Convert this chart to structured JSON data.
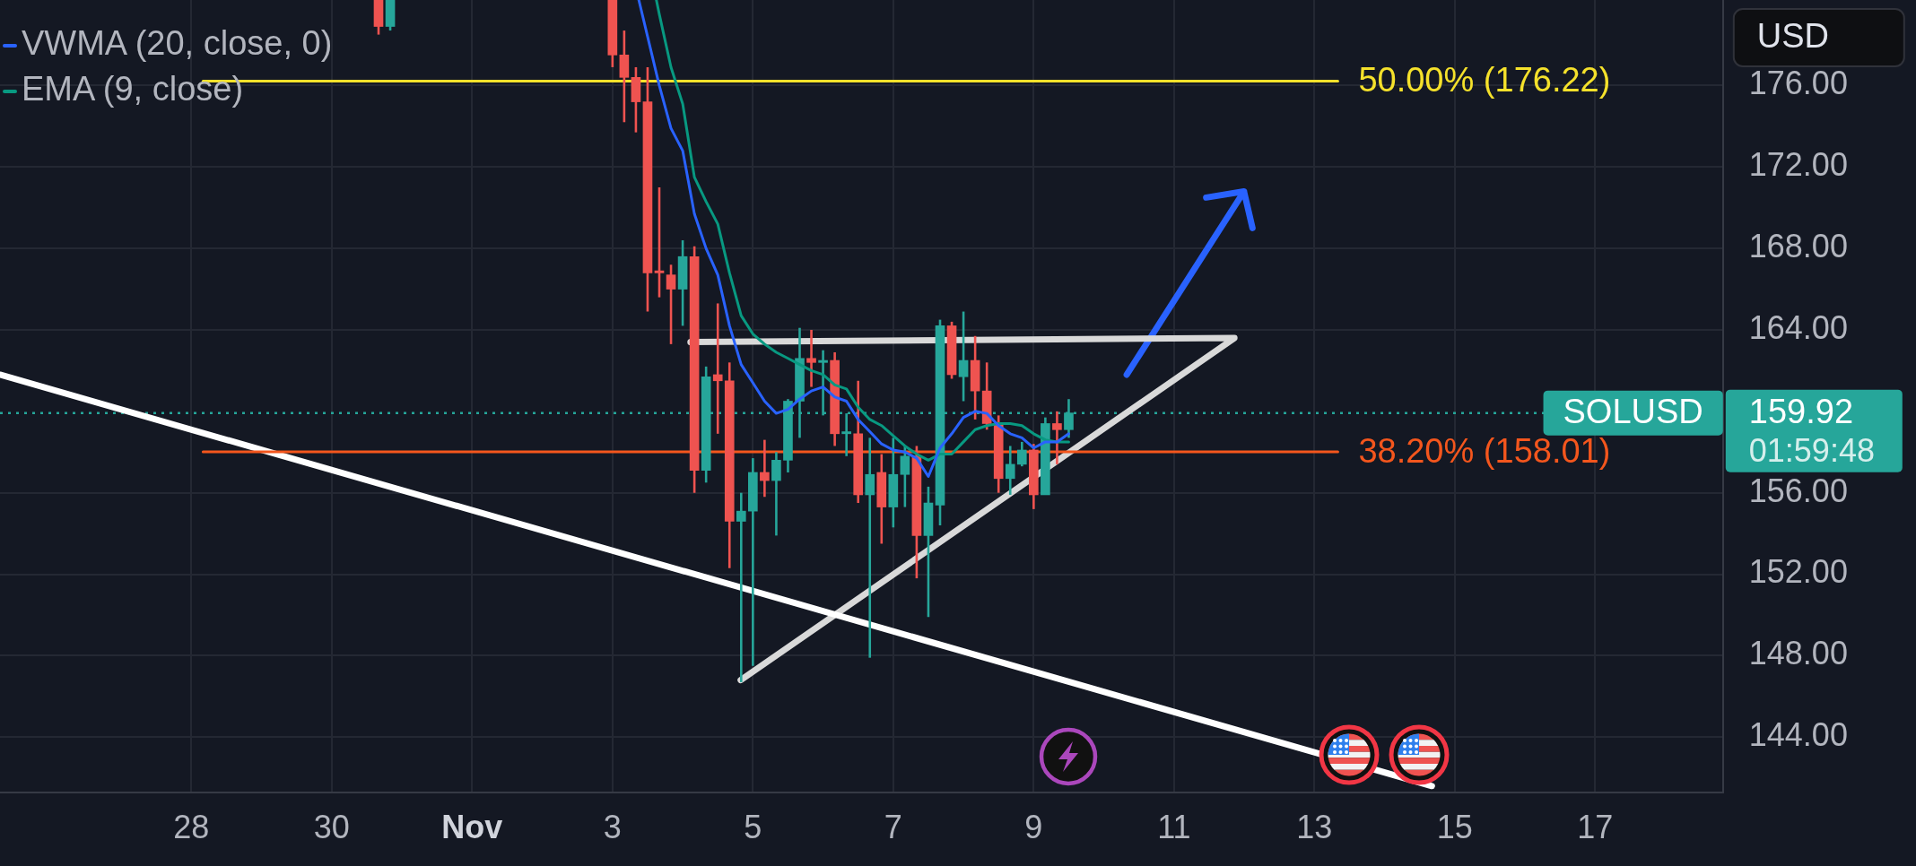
{
  "chart_data": {
    "type": "candlestick",
    "legend": "top left",
    "grid": true,
    "x": [
      "--10-30T16:00",
      "--10-30T20:00",
      "--11-03T00:00",
      "--11-03T04:00",
      "--11-03T08:00",
      "--11-03T12:00",
      "--11-03T16:00",
      "--11-03T20:00",
      "--11-04T00:00",
      "--11-04T04:00",
      "--11-04T08:00",
      "--11-04T12:00",
      "--11-04T16:00",
      "--11-04T20:00",
      "--11-05T00:00",
      "--11-05T04:00",
      "--11-05T08:00",
      "--11-05T12:00",
      "--11-05T16:00",
      "--11-05T20:00",
      "--11-06T00:00",
      "--11-06T04:00",
      "--11-06T08:00",
      "--11-06T12:00",
      "--11-06T16:00",
      "--11-06T20:00",
      "--11-07T00:00",
      "--11-07T04:00",
      "--11-07T08:00",
      "--11-07T12:00",
      "--11-07T16:00",
      "--11-07T20:00",
      "--11-08T00:00",
      "--11-08T04:00",
      "--11-08T08:00",
      "--11-08T12:00",
      "--11-08T16:00",
      "--11-08T20:00",
      "--11-09T00:00",
      "--11-09T04:00",
      "--11-09T08:00",
      "--11-09T12:00"
    ],
    "ohlc": [
      [
        180.2,
        180.2,
        178.5,
        178.9
      ],
      [
        178.9,
        180.2,
        178.7,
        180.2
      ],
      [
        180.2,
        180.2,
        176.9,
        177.5
      ],
      [
        177.5,
        178.7,
        174.2,
        176.4
      ],
      [
        176.4,
        176.9,
        173.7,
        175.2
      ],
      [
        175.2,
        176.9,
        164.9,
        166.8
      ],
      [
        166.9,
        171.0,
        165.6,
        166.8
      ],
      [
        166.7,
        167.2,
        163.3,
        166.0
      ],
      [
        166.0,
        168.4,
        164.2,
        167.6
      ],
      [
        167.6,
        168.1,
        156.0,
        157.1
      ],
      [
        157.1,
        162.2,
        156.5,
        161.7
      ],
      [
        161.8,
        165.3,
        158.9,
        161.5
      ],
      [
        161.5,
        162.4,
        152.3,
        154.6
      ],
      [
        154.6,
        156.0,
        146.7,
        155.1
      ],
      [
        155.1,
        157.7,
        147.5,
        157.0
      ],
      [
        157.0,
        158.6,
        155.8,
        156.6
      ],
      [
        156.6,
        158.0,
        153.9,
        157.6
      ],
      [
        157.6,
        160.6,
        157.0,
        160.5
      ],
      [
        160.5,
        164.1,
        158.7,
        162.6
      ],
      [
        162.6,
        164.0,
        161.2,
        162.4
      ],
      [
        162.4,
        163.0,
        159.8,
        162.5
      ],
      [
        162.5,
        162.9,
        158.3,
        158.9
      ],
      [
        158.9,
        159.9,
        157.8,
        159.0
      ],
      [
        158.9,
        161.5,
        155.5,
        155.9
      ],
      [
        155.9,
        158.7,
        147.9,
        156.9
      ],
      [
        157.0,
        157.9,
        153.5,
        155.3
      ],
      [
        155.3,
        158.7,
        154.3,
        156.9
      ],
      [
        156.9,
        158.3,
        155.3,
        157.8
      ],
      [
        157.8,
        158.3,
        151.8,
        153.9
      ],
      [
        153.9,
        156.3,
        149.9,
        155.5
      ],
      [
        155.4,
        164.5,
        154.4,
        164.2
      ],
      [
        164.2,
        164.4,
        161.6,
        161.8
      ],
      [
        161.7,
        164.9,
        160.5,
        162.5
      ],
      [
        162.5,
        163.7,
        159.6,
        161.0
      ],
      [
        161.0,
        162.4,
        159.1,
        159.4
      ],
      [
        159.4,
        159.8,
        156.0,
        156.7
      ],
      [
        156.7,
        158.3,
        155.9,
        157.4
      ],
      [
        157.4,
        158.5,
        157.3,
        158.1
      ],
      [
        158.1,
        158.4,
        155.2,
        155.9
      ],
      [
        155.9,
        159.7,
        155.9,
        159.4
      ],
      [
        159.4,
        160.0,
        157.4,
        159.1
      ],
      [
        159.1,
        160.6,
        158.7,
        159.92
      ]
    ],
    "colors": [
      "#ef5350",
      "#26a69a",
      "#ef5350",
      "#ef5350",
      "#ef5350",
      "#ef5350",
      "#ef5350",
      "#ef5350",
      "#26a69a",
      "#ef5350",
      "#26a69a",
      "#ef5350",
      "#ef5350",
      "#26a69a",
      "#26a69a",
      "#ef5350",
      "#26a69a",
      "#26a69a",
      "#26a69a",
      "#ef5350",
      "#26a69a",
      "#ef5350",
      "#26a69a",
      "#ef5350",
      "#26a69a",
      "#ef5350",
      "#26a69a",
      "#26a69a",
      "#ef5350",
      "#26a69a",
      "#26a69a",
      "#ef5350",
      "#26a69a",
      "#ef5350",
      "#ef5350",
      "#ef5350",
      "#26a69a",
      "#26a69a",
      "#ef5350",
      "#26a69a",
      "#ef5350",
      "#26a69a"
    ],
    "series": [
      {
        "name": "VWMA (20, close, 0)",
        "type": "line",
        "color": "#2962ff",
        "x": [
          "--11-03T09:00",
          "--11-03T12:00",
          "--11-03T16:00",
          "--11-03T20:00",
          "--11-04T00:00",
          "--11-04T04:00",
          "--11-04T08:00",
          "--11-04T12:00",
          "--11-04T16:00",
          "--11-04T20:00",
          "--11-05T00:00",
          "--11-05T04:00",
          "--11-05T08:00",
          "--11-05T12:00",
          "--11-05T16:00",
          "--11-05T20:00",
          "--11-06T00:00",
          "--11-06T04:00",
          "--11-06T08:00",
          "--11-06T12:00",
          "--11-06T16:00",
          "--11-06T20:00",
          "--11-07T00:00",
          "--11-07T04:00",
          "--11-07T08:00",
          "--11-07T12:00",
          "--11-07T16:00",
          "--11-07T20:00",
          "--11-08T00:00",
          "--11-08T04:00",
          "--11-08T08:00",
          "--11-08T12:00",
          "--11-08T16:00",
          "--11-08T20:00",
          "--11-09T00:00",
          "--11-09T04:00",
          "--11-09T08:00",
          "--11-09T12:00"
        ],
        "values": [
          180.2,
          178.4,
          176.0,
          173.9,
          172.8,
          169.7,
          168.0,
          166.7,
          164.2,
          162.3,
          161.4,
          160.5,
          159.9,
          160.1,
          160.6,
          161.0,
          161.2,
          160.7,
          160.5,
          159.6,
          159.0,
          158.4,
          158.1,
          158.0,
          157.7,
          156.8,
          158.2,
          158.9,
          159.7,
          160.0,
          159.9,
          159.3,
          158.9,
          158.7,
          158.2,
          158.5,
          158.5,
          158.9
        ]
      },
      {
        "name": "EMA (9, close)",
        "type": "line",
        "color": "#089981",
        "x": [
          "--11-03T15:00",
          "--11-03T16:00",
          "--11-03T20:00",
          "--11-04T00:00",
          "--11-04T04:00",
          "--11-04T08:00",
          "--11-04T12:00",
          "--11-04T16:00",
          "--11-04T20:00",
          "--11-05T00:00",
          "--11-05T04:00",
          "--11-05T08:00",
          "--11-05T12:00",
          "--11-05T16:00",
          "--11-05T20:00",
          "--11-06T00:00",
          "--11-06T04:00",
          "--11-06T08:00",
          "--11-06T12:00",
          "--11-06T16:00",
          "--11-06T20:00",
          "--11-07T00:00",
          "--11-07T04:00",
          "--11-07T08:00",
          "--11-07T12:00",
          "--11-07T16:00",
          "--11-07T20:00",
          "--11-08T00:00",
          "--11-08T04:00",
          "--11-08T08:00",
          "--11-08T12:00",
          "--11-08T16:00",
          "--11-08T20:00",
          "--11-09T00:00",
          "--11-09T04:00",
          "--11-09T08:00",
          "--11-09T12:00"
        ],
        "values": [
          180.2,
          179.5,
          176.9,
          175.1,
          171.5,
          170.3,
          169.2,
          166.8,
          164.7,
          163.8,
          163.3,
          162.9,
          162.6,
          162.3,
          162.0,
          161.8,
          161.3,
          161.1,
          160.2,
          159.6,
          159.3,
          158.8,
          158.3,
          157.9,
          157.6,
          157.9,
          157.9,
          158.5,
          159.1,
          159.3,
          159.4,
          159.4,
          159.3,
          158.9,
          158.6,
          158.5,
          158.5
        ]
      },
      {
        "type": "line",
        "color": "#f5e12b",
        "x": [
          "--10-28T04:00",
          "--11-13T08:00"
        ],
        "values": [
          176.22,
          176.22
        ],
        "value_labels": [
          null,
          "50.00% (176.22)"
        ]
      },
      {
        "type": "line",
        "color": "#f4561d",
        "x": [
          "--10-28T04:00",
          "--11-13T08:00"
        ],
        "values": [
          158.01,
          158.01
        ],
        "value_labels": [
          null,
          "38.20% (158.01)"
        ]
      },
      {
        "type": "line",
        "color": "#ffffff",
        "x": [
          "--10-25T06:34",
          "--11-14T16:10"
        ],
        "values": [
          161.8,
          141.6
        ]
      },
      {
        "type": "line",
        "color": "#d9d9d9",
        "x": [
          "--11-04T02:40",
          "--11-11T20:40",
          "--11-04T19:50"
        ],
        "values": [
          163.4,
          163.6,
          146.8
        ]
      },
      {
        "type": "line",
        "color": "#2962ff",
        "x": [
          "--11-10T07:50",
          "--11-11T23:55",
          "--11-11T11:00",
          "--11-11T23:55",
          "--11-12T02:50"
        ],
        "values": [
          161.8,
          170.8,
          170.5,
          170.8,
          169.0
        ]
      }
    ],
    "ref_lines": [
      {
        "axis": "y",
        "value": 159.92,
        "label": "SOLUSD",
        "line_style": "dotted",
        "color": "#26a69a"
      }
    ],
    "annotations": [
      "USD",
      "159.92",
      "01:59:48"
    ],
    "xlim": [
      "--10-25T06:34",
      "--11-18T19:42"
    ],
    "xticks": [
      {
        "value": "--10-28",
        "label": "28"
      },
      {
        "value": "--10-30",
        "label": "30"
      },
      {
        "value": "--11-01",
        "label": "Nov"
      },
      {
        "value": "--11-03",
        "label": "3"
      },
      {
        "value": "--11-05",
        "label": "5"
      },
      {
        "value": "--11-07",
        "label": "7"
      },
      {
        "value": "--11-09",
        "label": "9"
      },
      {
        "value": "--11-11",
        "label": "11"
      },
      {
        "value": "--11-13",
        "label": "13"
      },
      {
        "value": "--11-15",
        "label": "15"
      },
      {
        "value": "--11-17",
        "label": "17"
      }
    ],
    "ylim": [
      141.3,
      180.2
    ],
    "yticks": [
      {
        "value": 144,
        "label": "144.00"
      },
      {
        "value": 148,
        "label": "148.00"
      },
      {
        "value": 152,
        "label": "152.00"
      },
      {
        "value": 156,
        "label": "156.00"
      },
      {
        "value": 164,
        "label": "164.00"
      },
      {
        "value": 168,
        "label": "168.00"
      },
      {
        "value": 172,
        "label": "172.00"
      },
      {
        "value": 176,
        "label": "176.00"
      }
    ]
  }
}
